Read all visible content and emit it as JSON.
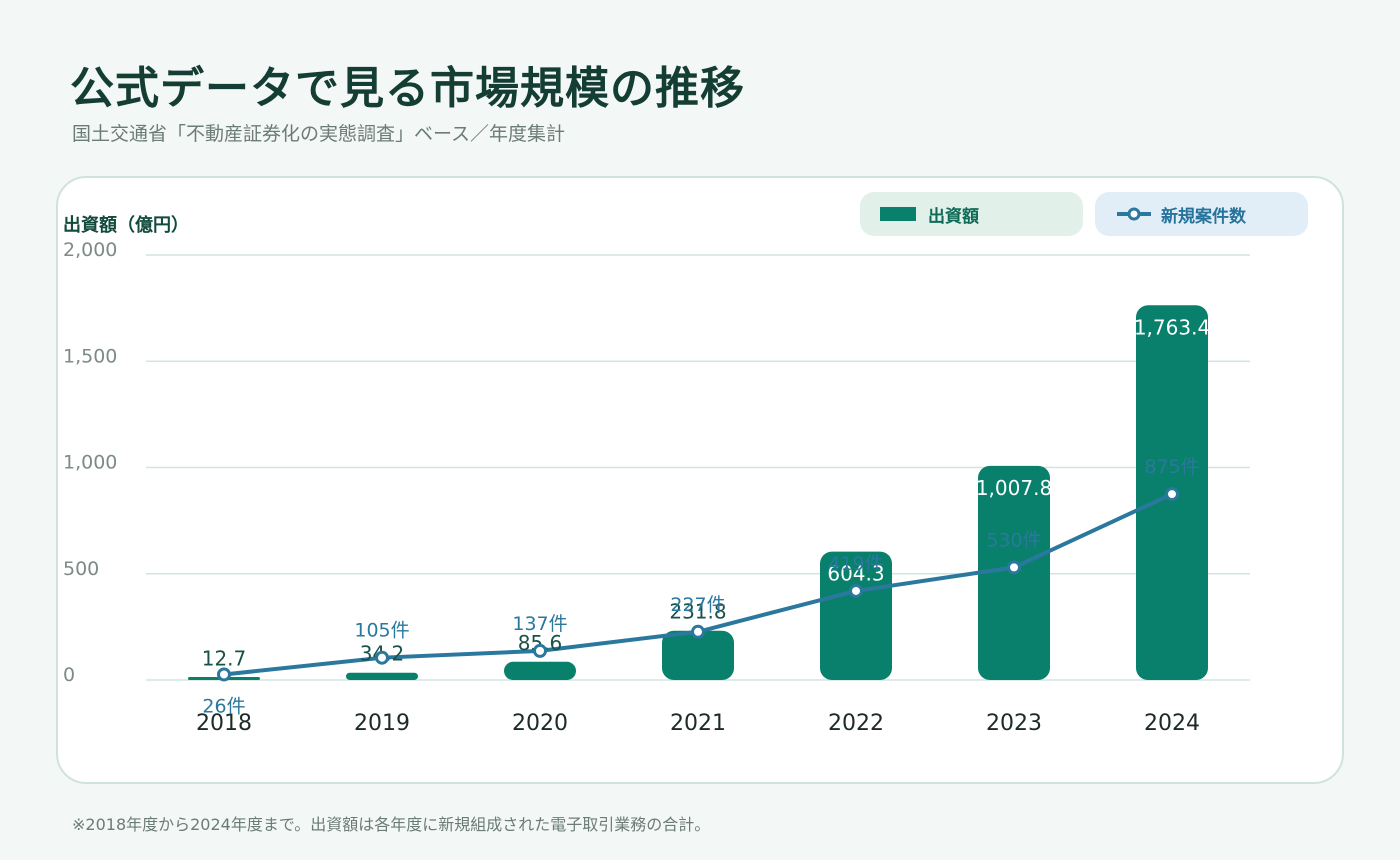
{
  "header": {
    "title": "公式データで見る市場規模の推移",
    "subtitle": "国土交通省「不動産証券化の実態調査」ベース／年度集計"
  },
  "legend": {
    "bar_label": "出資額",
    "line_label": "新規案件数"
  },
  "footnote": "※2018年度から2024年度まで。出資額は各年度に新規組成された電子取引業務の合計。",
  "colors": {
    "bar": "#08806b",
    "line": "#2b789e",
    "grid": "#d3e4e0"
  },
  "chart_data": {
    "type": "bar",
    "ylabel": "出資額（億円）",
    "ylim": [
      0,
      2000
    ],
    "yticks": [
      "0",
      "500",
      "1,000",
      "1,500",
      "2,000"
    ],
    "categories": [
      "2018",
      "2019",
      "2020",
      "2021",
      "2022",
      "2023",
      "2024"
    ],
    "series": [
      {
        "name": "出資額",
        "type": "bar",
        "values": [
          12.7,
          34.2,
          85.6,
          231.8,
          604.3,
          1007.8,
          1763.4
        ],
        "labels": [
          "12.7",
          "34.2",
          "85.6",
          "231.8",
          "604.3",
          "1,007.8",
          "1,763.4"
        ]
      },
      {
        "name": "新規案件数",
        "type": "line",
        "values": [
          26,
          105,
          137,
          227,
          419,
          530,
          875
        ],
        "labels": [
          "26件",
          "105件",
          "137件",
          "227件",
          "419件",
          "530件",
          "875件"
        ]
      }
    ]
  }
}
